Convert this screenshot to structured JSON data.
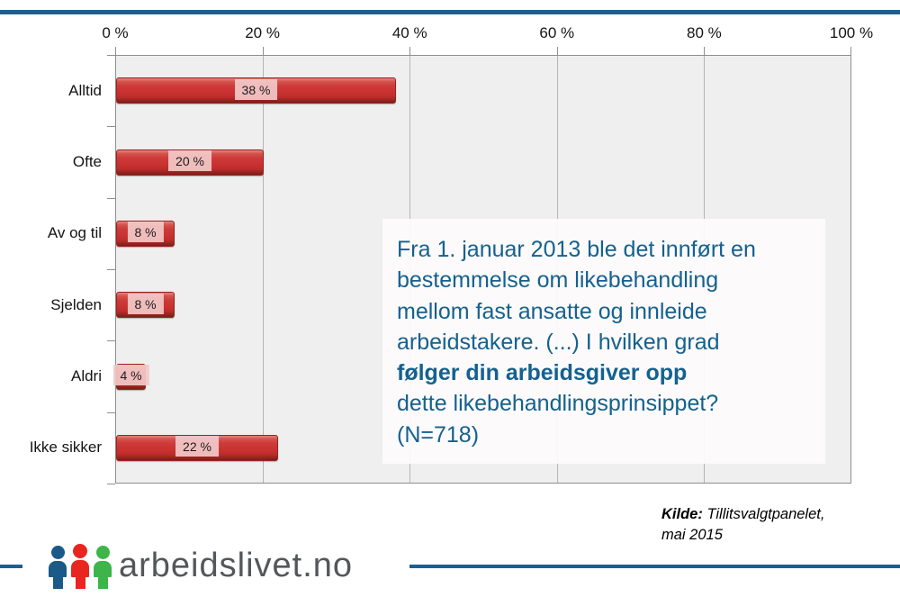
{
  "chart_data": {
    "type": "bar",
    "orientation": "horizontal",
    "title": "",
    "xlabel": "",
    "ylabel": "",
    "categories": [
      "Alltid",
      "Ofte",
      "Av og til",
      "Sjelden",
      "Aldri",
      "Ikke sikker"
    ],
    "values": [
      38,
      20,
      8,
      8,
      4,
      22
    ],
    "value_labels": [
      "38 %",
      "20 %",
      "8 %",
      "8 %",
      "4 %",
      "22 %"
    ],
    "axis_ticks": [
      "0 %",
      "20 %",
      "40 %",
      "60 %",
      "80 %",
      "100 %"
    ],
    "xlim": [
      0,
      100
    ],
    "grid": true,
    "bar_color": "#c93231",
    "plot_background": "#f0efef"
  },
  "question_box": {
    "lines": [
      "Fra 1. januar 2013 ble det innført en",
      "bestemmelse om likebehandling",
      "mellom fast ansatte og innleide",
      "arbeidstakere. (...) I hvilken grad",
      "følger din arbeidsgiver opp",
      "dette likebehandlingsprinsippet?",
      "(N=718)"
    ],
    "text_color": "#14618f"
  },
  "source": {
    "label": "Kilde:",
    "line1": "Tillitsvalgtpanelet,",
    "line2": "mai 2015"
  },
  "logo": {
    "text": "arbeidslivet.no",
    "icon": "three-people-icon",
    "person_colors": [
      "#1b5a88",
      "#e8251f",
      "#3db54a"
    ]
  },
  "accent_color": "#1e5f90"
}
